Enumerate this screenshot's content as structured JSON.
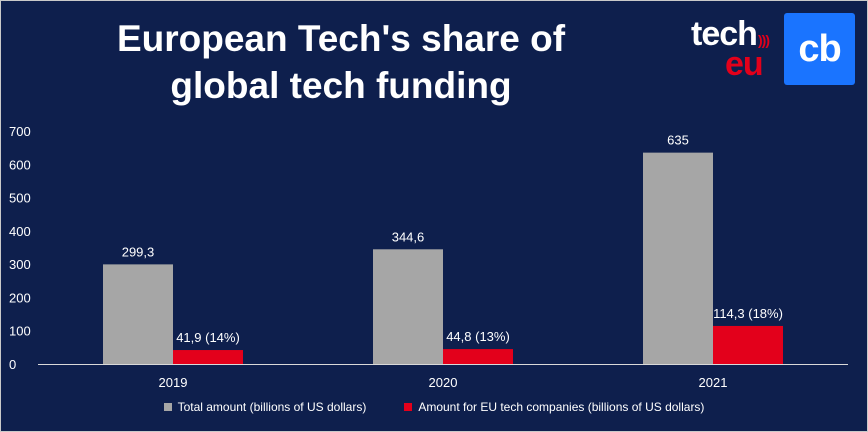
{
  "title_lines": [
    "European Tech's share of",
    "global tech funding"
  ],
  "logos": {
    "techeu": {
      "word1": "tech",
      "word2": "eu"
    },
    "cb": "cb"
  },
  "colors": {
    "background": "#0e1f4d",
    "total": "#a6a6a6",
    "eu": "#e3001b",
    "text": "#ffffff"
  },
  "chart_data": {
    "type": "bar",
    "categories": [
      "2019",
      "2020",
      "2021"
    ],
    "ylim": [
      0,
      700
    ],
    "yticks": [
      0,
      100,
      200,
      300,
      400,
      500,
      600,
      700
    ],
    "grid": false,
    "legend_position": "bottom",
    "series": [
      {
        "name": "Total amount (billions of US dollars)",
        "values": [
          299.3,
          344.6,
          635
        ],
        "labels": [
          "299,3",
          "344,6",
          "635"
        ]
      },
      {
        "name": "Amount for EU tech companies (billions of US dollars)",
        "values": [
          41.9,
          44.8,
          114.3
        ],
        "labels": [
          "41,9 (14%)",
          "44,8 (13%)",
          "114,3 (18%)"
        ]
      }
    ]
  }
}
